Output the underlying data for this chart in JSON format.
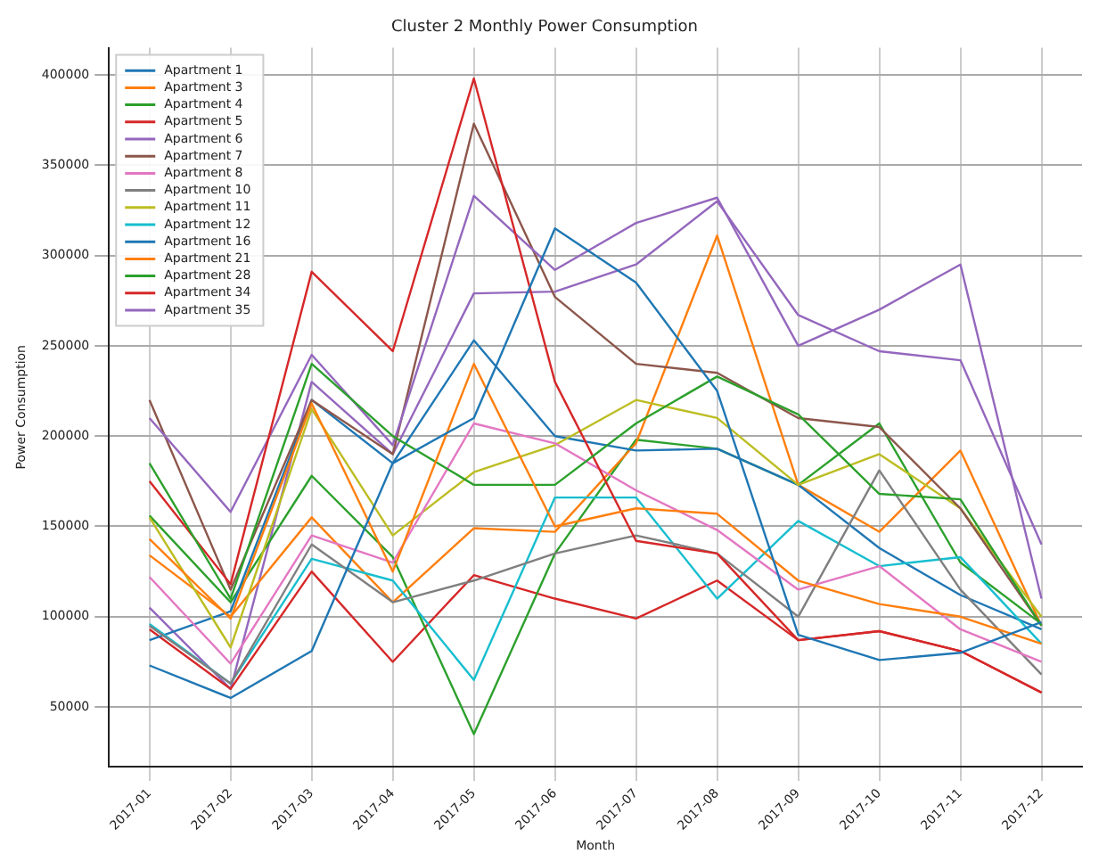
{
  "chart_data": {
    "type": "line",
    "title": "Cluster 2 Monthly Power Consumption",
    "xlabel": "Month",
    "ylabel": "Power Consumption",
    "categories": [
      "2017-01",
      "2017-02",
      "2017-03",
      "2017-04",
      "2017-05",
      "2017-06",
      "2017-07",
      "2017-08",
      "2017-09",
      "2017-10",
      "2017-11",
      "2017-12"
    ],
    "ylim": [
      17000,
      415000
    ],
    "yticks": [
      50000,
      100000,
      150000,
      200000,
      250000,
      300000,
      350000,
      400000
    ],
    "grid": true,
    "legend": "top left",
    "marker": "none",
    "line_style": "solid",
    "series": [
      {
        "name": "Apartment 1",
        "color": "#1f77b4",
        "values": [
          73000,
          55000,
          81000,
          185000,
          210000,
          315000,
          285000,
          225000,
          90000,
          76000,
          80000,
          97000
        ]
      },
      {
        "name": "Apartment 3",
        "color": "#ff7f0e",
        "values": [
          143000,
          99000,
          218000,
          125000,
          240000,
          150000,
          160000,
          157000,
          120000,
          107000,
          100000,
          85000
        ]
      },
      {
        "name": "Apartment 4",
        "color": "#2ca02c",
        "values": [
          185000,
          110000,
          240000,
          200000,
          173000,
          173000,
          207000,
          233000,
          212000,
          168000,
          165000,
          95000
        ]
      },
      {
        "name": "Apartment 5",
        "color": "#d62728",
        "values": [
          175000,
          118000,
          291000,
          247000,
          398000,
          230000,
          142000,
          135000,
          87000,
          92000,
          81000,
          58000
        ]
      },
      {
        "name": "Apartment 6",
        "color": "#9467bd",
        "values": [
          210000,
          158000,
          245000,
          195000,
          333000,
          292000,
          318000,
          332000,
          250000,
          270000,
          295000,
          110000
        ]
      },
      {
        "name": "Apartment 7",
        "color": "#8c564b",
        "values": [
          220000,
          115000,
          220000,
          190000,
          373000,
          277000,
          240000,
          235000,
          210000,
          205000,
          160000,
          95000
        ]
      },
      {
        "name": "Apartment 8",
        "color": "#e377c2",
        "values": [
          122000,
          74000,
          145000,
          130000,
          207000,
          196000,
          170000,
          148000,
          115000,
          128000,
          93000,
          75000
        ]
      },
      {
        "name": "Apartment 10",
        "color": "#7f7f7f",
        "values": [
          95000,
          63000,
          140000,
          108000,
          120000,
          135000,
          145000,
          135000,
          100000,
          181000,
          115000,
          68000
        ]
      },
      {
        "name": "Apartment 11",
        "color": "#bcbd22",
        "values": [
          155000,
          83000,
          215000,
          145000,
          180000,
          195000,
          220000,
          210000,
          173000,
          190000,
          160000,
          100000
        ]
      },
      {
        "name": "Apartment 12",
        "color": "#17becf",
        "values": [
          96000,
          63000,
          132000,
          120000,
          65000,
          166000,
          166000,
          110000,
          153000,
          128000,
          133000,
          85000
        ]
      },
      {
        "name": "Apartment 16",
        "color": "#1f77b4",
        "values": [
          87000,
          103000,
          220000,
          185000,
          253000,
          200000,
          192000,
          193000,
          173000,
          138000,
          112000,
          93000
        ]
      },
      {
        "name": "Apartment 21",
        "color": "#ff7f0e",
        "values": [
          134000,
          100000,
          155000,
          108000,
          149000,
          147000,
          196000,
          311000,
          173000,
          147000,
          192000,
          95000
        ]
      },
      {
        "name": "Apartment 28",
        "color": "#2ca02c",
        "values": [
          156000,
          108000,
          178000,
          133000,
          35000,
          135000,
          198000,
          193000,
          173000,
          207000,
          130000,
          96000
        ]
      },
      {
        "name": "Apartment 34",
        "color": "#d62728",
        "values": [
          93000,
          60000,
          125000,
          75000,
          123000,
          110000,
          99000,
          120000,
          87000,
          92000,
          81000,
          58000
        ]
      },
      {
        "name": "Apartment 35",
        "color": "#9467bd",
        "values": [
          105000,
          60000,
          230000,
          190000,
          279000,
          280000,
          295000,
          330000,
          267000,
          247000,
          242000,
          140000
        ]
      }
    ]
  }
}
